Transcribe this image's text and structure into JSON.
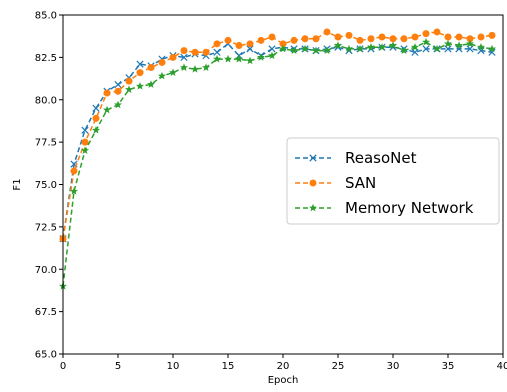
{
  "chart_data": {
    "type": "line",
    "xlabel": "Epoch",
    "ylabel": "F1",
    "xlim": [
      0,
      40
    ],
    "ylim": [
      65.0,
      85.0
    ],
    "xticks": [
      0,
      5,
      10,
      15,
      20,
      25,
      30,
      35,
      40
    ],
    "xtick_labels": [
      "0",
      "5",
      "10",
      "15",
      "20",
      "25",
      "30",
      "35",
      "40"
    ],
    "yticks": [
      65.0,
      67.5,
      70.0,
      72.5,
      75.0,
      77.5,
      80.0,
      82.5,
      85.0
    ],
    "ytick_labels": [
      "65.0",
      "67.5",
      "70.0",
      "72.5",
      "75.0",
      "77.5",
      "80.0",
      "82.5",
      "85.0"
    ],
    "grid": false,
    "legend_position": "center-right",
    "series": [
      {
        "name": "ReasoNet",
        "color": "#1f77b4",
        "marker": "x",
        "line_style": "dashed",
        "x": [
          0,
          1,
          2,
          3,
          4,
          5,
          6,
          7,
          8,
          9,
          10,
          11,
          12,
          13,
          14,
          15,
          16,
          17,
          18,
          19,
          20,
          21,
          22,
          23,
          24,
          25,
          26,
          27,
          28,
          29,
          30,
          31,
          32,
          33,
          34,
          35,
          36,
          37,
          38,
          39
        ],
        "y": [
          71.8,
          76.2,
          78.2,
          79.5,
          80.5,
          80.9,
          81.3,
          82.1,
          82.0,
          82.4,
          82.6,
          82.5,
          82.7,
          82.6,
          82.8,
          83.3,
          82.6,
          83.0,
          82.6,
          83.0,
          83.1,
          83.0,
          83.0,
          82.9,
          83.0,
          83.1,
          82.9,
          83.0,
          83.0,
          83.1,
          83.1,
          83.0,
          82.8,
          83.0,
          83.0,
          83.0,
          83.0,
          83.0,
          82.9,
          82.8
        ]
      },
      {
        "name": "SAN",
        "color": "#ff7f0e",
        "marker": "o",
        "line_style": "dashed",
        "x": [
          0,
          1,
          2,
          3,
          4,
          5,
          6,
          7,
          8,
          9,
          10,
          11,
          12,
          13,
          14,
          15,
          16,
          17,
          18,
          19,
          20,
          21,
          22,
          23,
          24,
          25,
          26,
          27,
          28,
          29,
          30,
          31,
          32,
          33,
          34,
          35,
          36,
          37,
          38,
          39
        ],
        "y": [
          71.8,
          75.8,
          77.5,
          78.9,
          80.4,
          80.5,
          81.1,
          81.6,
          81.9,
          82.2,
          82.5,
          82.9,
          82.8,
          82.8,
          83.3,
          83.5,
          83.2,
          83.3,
          83.5,
          83.7,
          83.3,
          83.5,
          83.6,
          83.6,
          84.0,
          83.7,
          83.8,
          83.5,
          83.6,
          83.7,
          83.6,
          83.6,
          83.7,
          83.9,
          84.0,
          83.7,
          83.7,
          83.6,
          83.7,
          83.8
        ]
      },
      {
        "name": "Memory Network",
        "color": "#2ca02c",
        "marker": "*",
        "line_style": "dashed",
        "x": [
          0,
          1,
          2,
          3,
          4,
          5,
          6,
          7,
          8,
          9,
          10,
          11,
          12,
          13,
          14,
          15,
          16,
          17,
          18,
          19,
          20,
          21,
          22,
          23,
          24,
          25,
          26,
          27,
          28,
          29,
          30,
          31,
          32,
          33,
          34,
          35,
          36,
          37,
          38,
          39
        ],
        "y": [
          69.0,
          74.6,
          77.0,
          78.2,
          79.4,
          79.7,
          80.6,
          80.8,
          80.9,
          81.4,
          81.6,
          81.9,
          81.8,
          81.9,
          82.4,
          82.4,
          82.4,
          82.3,
          82.5,
          82.6,
          83.0,
          82.9,
          83.0,
          82.9,
          82.9,
          83.2,
          83.0,
          83.0,
          83.1,
          83.1,
          83.2,
          82.9,
          83.1,
          83.4,
          83.0,
          83.3,
          83.2,
          83.3,
          83.1,
          83.0
        ]
      }
    ]
  }
}
